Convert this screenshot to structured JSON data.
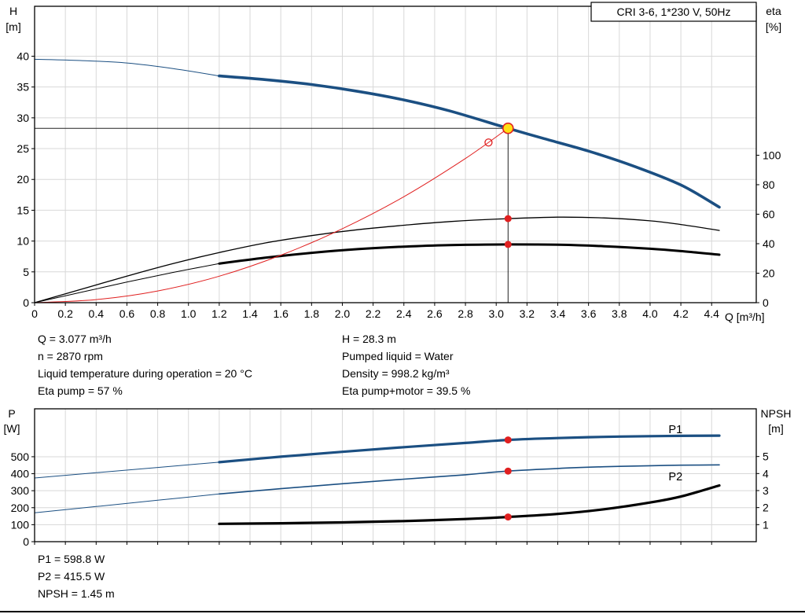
{
  "colors": {
    "accent_blue": "#1b4f82",
    "marker_red": "#e02020",
    "duty_yellow": "#ffe014",
    "grid": "#d8d8d8"
  },
  "duty_info": {
    "col1": [
      "Q = 3.077 m³/h",
      "n = 2870 rpm",
      "Liquid temperature during operation = 20 °C",
      "Eta pump = 57 %"
    ],
    "col2": [
      "H = 28.3 m",
      "Pumped liquid = Water",
      "Density = 998.2 kg/m³",
      "Eta pump+motor = 39.5 %"
    ]
  },
  "result_info": [
    "P1 = 598.8 W",
    "P2 = 415.5 W",
    "NPSH = 1.45 m"
  ],
  "chart_data": [
    {
      "type": "line",
      "title": "CRI 3-6, 1*230 V, 50Hz",
      "x_axis": {
        "label": "Q [m³/h]",
        "min": 0,
        "max": 4.69,
        "tick_step": 0.2,
        "tick_max": 4.4
      },
      "y_left": {
        "label": [
          "H",
          "[m]"
        ],
        "min": 0,
        "max": 48.1,
        "ticks": [
          0,
          5,
          10,
          15,
          20,
          25,
          30,
          35,
          40
        ]
      },
      "y_right": {
        "label": [
          "eta",
          "[%]"
        ],
        "min": 0,
        "max": 201,
        "ticks": [
          0,
          20,
          40,
          60,
          80,
          100
        ]
      },
      "series": [
        {
          "name": "pump-curve-lead",
          "axis": "left",
          "color": "#1b4f82",
          "width": 1,
          "points": [
            [
              0,
              39.5
            ],
            [
              0.3,
              39.3
            ],
            [
              0.6,
              38.9
            ],
            [
              0.9,
              38.0
            ],
            [
              1.2,
              36.8
            ]
          ]
        },
        {
          "name": "pump-curve",
          "axis": "left",
          "color": "#1b4f82",
          "width": 3.6,
          "points": [
            [
              1.2,
              36.8
            ],
            [
              1.5,
              36.2
            ],
            [
              1.8,
              35.4
            ],
            [
              2.1,
              34.3
            ],
            [
              2.4,
              32.9
            ],
            [
              2.7,
              31.1
            ],
            [
              3.077,
              28.3
            ],
            [
              3.3,
              26.7
            ],
            [
              3.6,
              24.6
            ],
            [
              3.9,
              22.1
            ],
            [
              4.2,
              19.1
            ],
            [
              4.45,
              15.5
            ]
          ]
        },
        {
          "name": "eta-pump-curve",
          "axis": "right",
          "color": "#000000",
          "width": 1.3,
          "points": [
            [
              0,
              0
            ],
            [
              0.3,
              9
            ],
            [
              0.6,
              18
            ],
            [
              0.9,
              26.5
            ],
            [
              1.2,
              34
            ],
            [
              1.5,
              40.5
            ],
            [
              1.8,
              45.5
            ],
            [
              2.1,
              49.5
            ],
            [
              2.4,
              52.5
            ],
            [
              2.7,
              55
            ],
            [
              3.077,
              57
            ],
            [
              3.4,
              58
            ],
            [
              3.7,
              57.5
            ],
            [
              4.0,
              55.5
            ],
            [
              4.2,
              53
            ],
            [
              4.45,
              49
            ]
          ]
        },
        {
          "name": "eta-pump-motor-lead",
          "axis": "right",
          "color": "#000000",
          "width": 1,
          "points": [
            [
              0,
              0
            ],
            [
              0.3,
              7
            ],
            [
              0.6,
              14
            ],
            [
              0.9,
              20.5
            ],
            [
              1.2,
              26.5
            ]
          ]
        },
        {
          "name": "eta-pump-motor-curve",
          "axis": "right",
          "color": "#000000",
          "width": 3,
          "points": [
            [
              1.2,
              26.5
            ],
            [
              1.5,
              30.5
            ],
            [
              1.8,
              33.8
            ],
            [
              2.1,
              36.3
            ],
            [
              2.4,
              38
            ],
            [
              2.7,
              39.1
            ],
            [
              3.077,
              39.5
            ],
            [
              3.4,
              39.3
            ],
            [
              3.7,
              38.3
            ],
            [
              4.0,
              36.6
            ],
            [
              4.2,
              35
            ],
            [
              4.45,
              32.5
            ]
          ]
        },
        {
          "name": "affinity-parabola",
          "axis": "left",
          "color": "#e02020",
          "width": 1,
          "points": [
            [
              0,
              0
            ],
            [
              0.4,
              0.5
            ],
            [
              0.8,
              1.9
            ],
            [
              1.2,
              4.3
            ],
            [
              1.6,
              7.7
            ],
            [
              2.0,
              12.0
            ],
            [
              2.4,
              17.2
            ],
            [
              2.8,
              23.4
            ],
            [
              3.077,
              28.3
            ]
          ]
        }
      ],
      "guides": [
        {
          "name": "duty-head-line",
          "axis": "left",
          "color": "#222222",
          "width": 1,
          "points": [
            [
              0,
              28.3
            ],
            [
              3.077,
              28.3
            ]
          ]
        },
        {
          "name": "duty-flow-line",
          "axis": "left",
          "color": "#222222",
          "width": 1,
          "points": [
            [
              3.077,
              28.3
            ],
            [
              3.077,
              0
            ]
          ]
        }
      ],
      "markers": [
        {
          "name": "duty-point",
          "axis": "left",
          "x": 3.077,
          "y": 28.3,
          "r": 6.5,
          "fill": "#ffe014",
          "stroke": "#e02020",
          "stroke_width": 1.6
        },
        {
          "name": "requested-duty-point",
          "axis": "left",
          "x": 2.95,
          "y": 26.0,
          "r": 4.5,
          "fill": "none",
          "stroke": "#e02020",
          "stroke_width": 1.3
        },
        {
          "name": "eta-pump-duty-point",
          "axis": "right",
          "x": 3.077,
          "y": 57,
          "r": 4.5,
          "fill": "#e02020",
          "stroke": "none",
          "stroke_width": 0
        },
        {
          "name": "eta-pump-motor-duty-point",
          "axis": "right",
          "x": 3.077,
          "y": 39.5,
          "r": 4.5,
          "fill": "#e02020",
          "stroke": "none",
          "stroke_width": 0
        }
      ],
      "labels": []
    },
    {
      "type": "line",
      "x_axis": {
        "label": "",
        "min": 0,
        "max": 4.69,
        "tick_step": 0.2,
        "tick_max": 4.4
      },
      "y_left": {
        "label": [
          "P",
          "[W]"
        ],
        "min": 0,
        "max": 782,
        "ticks": [
          0,
          100,
          200,
          300,
          400,
          500
        ]
      },
      "y_right": {
        "label": [
          "NPSH",
          "[m]"
        ],
        "min": 0,
        "max": 7.8,
        "ticks": [
          1,
          2,
          3,
          4,
          5
        ]
      },
      "series": [
        {
          "name": "p1-curve-lead",
          "axis": "left",
          "color": "#1b4f82",
          "width": 1,
          "points": [
            [
              0,
              375
            ],
            [
              0.4,
              406
            ],
            [
              0.8,
              437
            ],
            [
              1.2,
              468
            ]
          ]
        },
        {
          "name": "p1-curve",
          "axis": "left",
          "color": "#1b4f82",
          "width": 3.2,
          "points": [
            [
              1.2,
              468
            ],
            [
              1.6,
              500
            ],
            [
              2.0,
              529
            ],
            [
              2.4,
              556
            ],
            [
              2.8,
              581
            ],
            [
              3.077,
              598.8
            ],
            [
              3.4,
              610
            ],
            [
              3.7,
              617
            ],
            [
              4.0,
              621
            ],
            [
              4.2,
              623
            ],
            [
              4.45,
              624
            ]
          ]
        },
        {
          "name": "p2-curve-lead",
          "axis": "left",
          "color": "#1b4f82",
          "width": 1,
          "points": [
            [
              0,
              170
            ],
            [
              0.4,
              207
            ],
            [
              0.8,
              244
            ],
            [
              1.2,
              281
            ]
          ]
        },
        {
          "name": "p2-curve",
          "axis": "left",
          "color": "#1b4f82",
          "width": 1.6,
          "points": [
            [
              1.2,
              281
            ],
            [
              1.6,
              312
            ],
            [
              2.0,
              341
            ],
            [
              2.4,
              368
            ],
            [
              2.8,
              394
            ],
            [
              3.077,
              415.5
            ],
            [
              3.4,
              431
            ],
            [
              3.7,
              441
            ],
            [
              4.0,
              447
            ],
            [
              4.2,
              450
            ],
            [
              4.45,
              452
            ]
          ]
        },
        {
          "name": "npsh-curve",
          "axis": "right",
          "color": "#000000",
          "width": 3.2,
          "points": [
            [
              1.2,
              1.05
            ],
            [
              1.6,
              1.08
            ],
            [
              2.0,
              1.13
            ],
            [
              2.4,
              1.21
            ],
            [
              2.8,
              1.33
            ],
            [
              3.077,
              1.45
            ],
            [
              3.4,
              1.63
            ],
            [
              3.7,
              1.9
            ],
            [
              4.0,
              2.3
            ],
            [
              4.2,
              2.65
            ],
            [
              4.45,
              3.3
            ]
          ]
        }
      ],
      "guides": [],
      "markers": [
        {
          "name": "p1-duty-point",
          "axis": "left",
          "x": 3.077,
          "y": 598.8,
          "r": 4.5,
          "fill": "#e02020",
          "stroke": "none",
          "stroke_width": 0
        },
        {
          "name": "p2-duty-point",
          "axis": "left",
          "x": 3.077,
          "y": 415.5,
          "r": 4.5,
          "fill": "#e02020",
          "stroke": "none",
          "stroke_width": 0
        },
        {
          "name": "npsh-duty-point",
          "axis": "right",
          "x": 3.077,
          "y": 1.45,
          "r": 4.5,
          "fill": "#e02020",
          "stroke": "none",
          "stroke_width": 0
        }
      ],
      "labels": [
        {
          "text": "P1",
          "x": 4.12,
          "y": 638,
          "axis": "left",
          "color": "#1b4f82"
        },
        {
          "text": "P2",
          "x": 4.12,
          "y": 361,
          "axis": "left",
          "color": "#1b4f82"
        }
      ]
    }
  ]
}
